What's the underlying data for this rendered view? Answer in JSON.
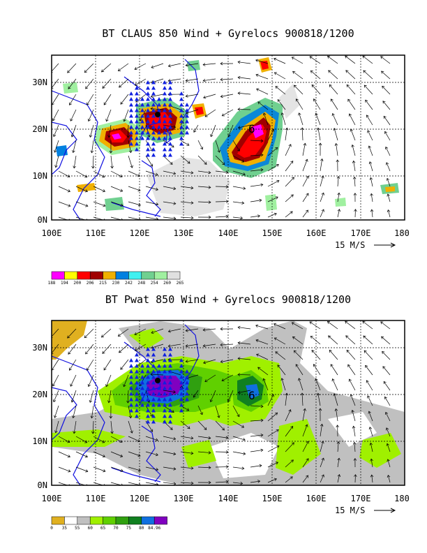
{
  "panels": [
    {
      "title": "BT CLAUS 850 Wind + Gyrelocs 900818/1200",
      "x_ticks": [
        "100E",
        "110E",
        "120E",
        "130E",
        "140E",
        "150E",
        "160E",
        "170E",
        "180"
      ],
      "y_ticks": [
        "0N",
        "10N",
        "20N",
        "30N"
      ],
      "ref_vector": "15 M/S",
      "colorbar": {
        "labels": [
          "188",
          "194",
          "200",
          "206",
          "215",
          "230",
          "242",
          "248",
          "254",
          "260",
          "265"
        ],
        "colors": [
          "#ff00ff",
          "#ffff00",
          "#ff0000",
          "#a00000",
          "#f0b000",
          "#0080e0",
          "#40f0f0",
          "#70d090",
          "#a0f0a0",
          "#e0e0e0"
        ]
      }
    },
    {
      "title": "BT Pwat 850 Wind + Gyrelocs 900818/1200",
      "x_ticks": [
        "100E",
        "110E",
        "120E",
        "130E",
        "140E",
        "150E",
        "160E",
        "170E",
        "180"
      ],
      "y_ticks": [
        "0N",
        "10N",
        "20N",
        "30N"
      ],
      "ref_vector": "15 M/S",
      "colorbar": {
        "labels": [
          "0",
          "35",
          "55",
          "60",
          "65",
          "70",
          "75",
          "80",
          "84.96"
        ],
        "colors": [
          "#e0b020",
          "#ffffff",
          "#c0c0c0",
          "#a0f000",
          "#60d000",
          "#30a010",
          "#108020",
          "#1070e0",
          "#8000c0"
        ]
      }
    }
  ],
  "chart_data": [
    {
      "type": "heatmap",
      "title": "BT CLAUS 850 Wind + Gyrelocs 900818/1200",
      "x_range_deg_e": [
        100,
        180
      ],
      "y_range_deg_n": [
        0,
        35
      ],
      "grid": true,
      "vector_reference": "15 M/S",
      "color_levels": [
        188,
        194,
        200,
        206,
        215,
        230,
        242,
        248,
        254,
        260,
        265
      ],
      "cyclone_center_symbols": [
        {
          "lon": 145,
          "lat": 20
        }
      ],
      "markers": "blue triangles"
    },
    {
      "type": "heatmap",
      "title": "BT Pwat 850 Wind + Gyrelocs 900818/1200",
      "x_range_deg_e": [
        100,
        180
      ],
      "y_range_deg_n": [
        0,
        35
      ],
      "grid": true,
      "vector_reference": "15 M/S",
      "color_levels": [
        0,
        35,
        55,
        60,
        65,
        70,
        75,
        80,
        84.96
      ],
      "cyclone_center_symbols": [
        {
          "lon": 145,
          "lat": 19
        }
      ],
      "markers": "blue triangles"
    }
  ]
}
